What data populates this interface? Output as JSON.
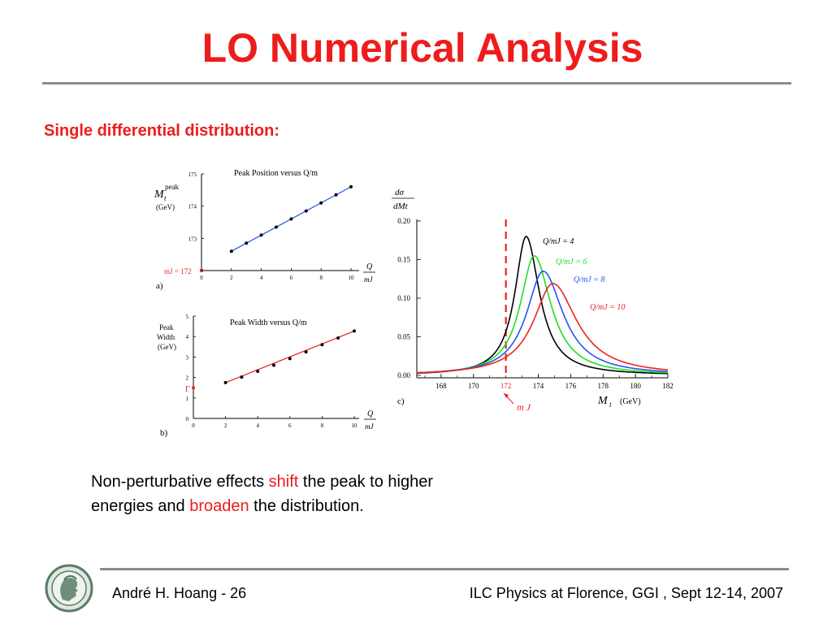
{
  "slide": {
    "title": "LO Numerical Analysis",
    "subtitle": "Single differential distribution:",
    "body": {
      "part1": "Non-perturbative effects ",
      "shift": "shift",
      "part2": " the peak to higher",
      "part3": "energies and ",
      "broaden": "broaden",
      "part4": " the distribution."
    },
    "footer_left": "André H. Hoang  - 26",
    "footer_right": "ILC Physics at Florence, GGI , Sept 12-14, 2007"
  },
  "colors": {
    "title": "#ee1c1c",
    "rule": "#8c8c8c",
    "black": "#000000",
    "green": "#22dd22",
    "blue": "#2255ee",
    "red": "#ee2222"
  },
  "chart_data": [
    {
      "id": "a",
      "type": "scatter",
      "panel_label": "a)",
      "title": "Peak Position versus Q/m",
      "ylabel_main": "M",
      "ylabel_sub": "t",
      "ylabel_sup": "peak",
      "ylabel_unit": "(GeV)",
      "xlabel_num": "Q",
      "xlabel_den": "mJ",
      "ref_label": "mJ = 172",
      "ref_value": 172,
      "xlim": [
        0,
        10
      ],
      "ylim": [
        172,
        175
      ],
      "xticks": [
        "0",
        "2",
        "4",
        "6",
        "8",
        "10"
      ],
      "yticks": [
        "172",
        "173",
        "174",
        "175"
      ],
      "x": [
        2,
        3,
        4,
        5,
        6,
        7,
        8,
        9,
        10
      ],
      "y": [
        172.6,
        172.85,
        173.1,
        173.35,
        173.6,
        173.85,
        174.1,
        174.35,
        174.6
      ],
      "fit_color": "#2255ee"
    },
    {
      "id": "b",
      "type": "scatter",
      "panel_label": "b)",
      "title": "Peak Width versus Q/m",
      "ylabel_lines": [
        "Peak",
        "Width",
        "(GeV)"
      ],
      "xlabel_num": "Q",
      "xlabel_den": "mJ",
      "ref_label": "Γ",
      "ref_value": 1.5,
      "xlim": [
        0,
        10
      ],
      "ylim": [
        0,
        5
      ],
      "xticks": [
        "0",
        "2",
        "4",
        "6",
        "8",
        "10"
      ],
      "yticks": [
        "0",
        "1",
        "2",
        "3",
        "4",
        "5"
      ],
      "x": [
        2,
        3,
        4,
        5,
        6,
        7,
        8,
        9,
        10
      ],
      "y": [
        1.75,
        2.02,
        2.3,
        2.6,
        2.92,
        3.25,
        3.6,
        3.93,
        4.27
      ],
      "fit_color": "#ee2222"
    },
    {
      "id": "c",
      "type": "line",
      "panel_label": "c)",
      "ylabel_num": "dσ",
      "ylabel_den": "dMt",
      "xlabel_main": "M",
      "xlabel_sub": "t",
      "xlabel_unit": "(GeV)",
      "ref_value": 172,
      "ref_tick": "172",
      "ref_label": "m J",
      "xlim": [
        166.5,
        182
      ],
      "ylim": [
        0,
        0.2
      ],
      "xticks": [
        "168",
        "170",
        "174",
        "176",
        "178",
        "180",
        "182"
      ],
      "xtick_values": [
        168,
        170,
        174,
        176,
        178,
        180,
        182
      ],
      "yticks": [
        "0.00",
        "0.05",
        "0.10",
        "0.15",
        "0.20"
      ],
      "series": [
        {
          "name": "Q/mJ = 4",
          "color": "#000000",
          "peak_x": 173.25,
          "peak_y": 0.18,
          "hwhm_left": 0.85,
          "hwhm_right": 1.0
        },
        {
          "name": "Q/mJ = 6",
          "color": "#22dd22",
          "peak_x": 173.75,
          "peak_y": 0.155,
          "hwhm_left": 1.05,
          "hwhm_right": 1.25
        },
        {
          "name": "Q/mJ = 8",
          "color": "#2255ee",
          "peak_x": 174.3,
          "peak_y": 0.135,
          "hwhm_left": 1.25,
          "hwhm_right": 1.5
        },
        {
          "name": "Q/mJ = 10",
          "color": "#ee2222",
          "peak_x": 174.9,
          "peak_y": 0.119,
          "hwhm_left": 1.45,
          "hwhm_right": 1.8
        }
      ]
    }
  ]
}
